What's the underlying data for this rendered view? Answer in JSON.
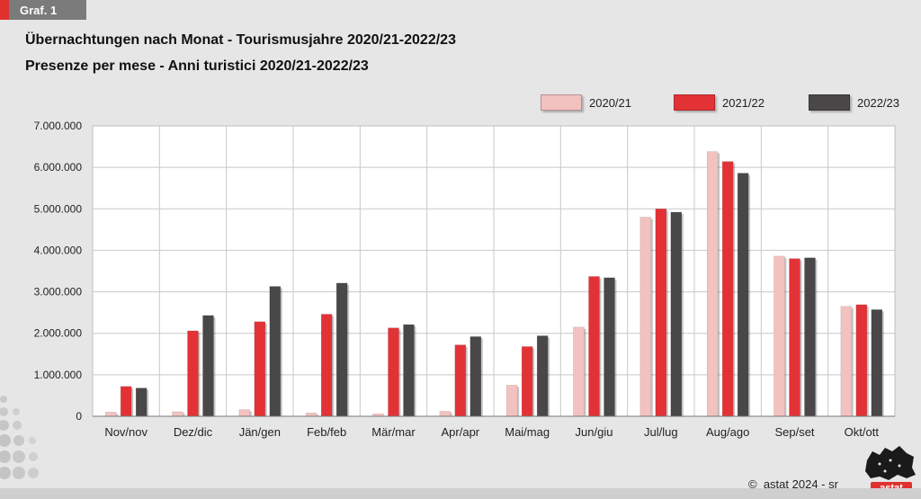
{
  "tag": {
    "label": "Graf. 1"
  },
  "titles": {
    "de": "Übernachtungen nach Monat - Tourismusjahre 2020/21-2022/23",
    "it": "Presenze per mese - Anni turistici 2020/21-2022/23"
  },
  "credit": "astat 2024 - sr",
  "copyright_symbol": "©",
  "logo_text": "astat",
  "colors": {
    "series_2020": "#f2c2c0",
    "series_2021": "#e33236",
    "series_2022": "#4a4748",
    "grid": "#c8c8c8",
    "plot_bg": "#ffffff",
    "brand_red": "#e0312f"
  },
  "chart_data": {
    "type": "bar",
    "categories": [
      "Nov/nov",
      "Dez/dic",
      "Jän/gen",
      "Feb/feb",
      "Mär/mar",
      "Apr/apr",
      "Mai/mag",
      "Jun/giu",
      "Jul/lug",
      "Aug/ago",
      "Sep/set",
      "Okt/ott"
    ],
    "series": [
      {
        "name": "2020/21",
        "values": [
          100000,
          110000,
          160000,
          80000,
          60000,
          120000,
          750000,
          2150000,
          4800000,
          6380000,
          3860000,
          2650000
        ]
      },
      {
        "name": "2021/22",
        "values": [
          720000,
          2060000,
          2280000,
          2460000,
          2130000,
          1720000,
          1680000,
          3370000,
          5000000,
          6140000,
          3800000,
          2690000
        ]
      },
      {
        "name": "2022/23",
        "values": [
          680000,
          2430000,
          3130000,
          3210000,
          2210000,
          1920000,
          1940000,
          3340000,
          4920000,
          5860000,
          3820000,
          2570000
        ]
      }
    ],
    "ylim": [
      0,
      7000000
    ],
    "yticks": [
      "0",
      "1.000.000",
      "2.000.000",
      "3.000.000",
      "4.000.000",
      "5.000.000",
      "6.000.000",
      "7.000.000"
    ],
    "grid": true,
    "legend_position": "top-right"
  }
}
